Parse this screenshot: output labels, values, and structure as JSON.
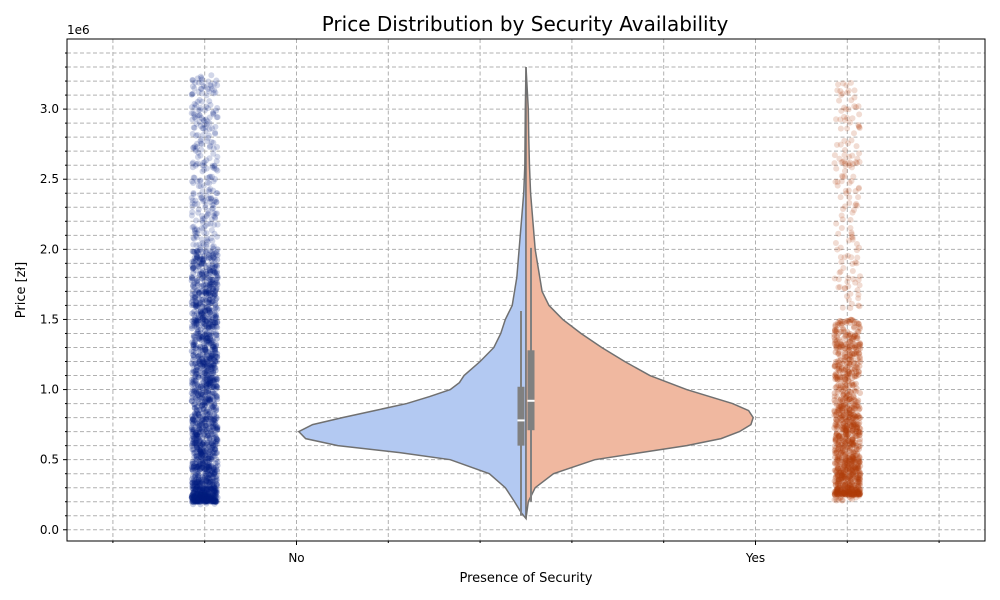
{
  "chart_data": {
    "type": "violin",
    "title": "Price Distribution by Security Availability",
    "xlabel": "Presence of Security",
    "ylabel": "Price [zł]",
    "y_offset_label": "1e6",
    "categories": [
      "No",
      "Yes"
    ],
    "ylim": [
      -0.08,
      3.5
    ],
    "y_ticks": [
      0.0,
      0.5,
      1.0,
      1.5,
      2.0,
      2.5,
      3.0
    ],
    "y_tick_labels": [
      "0.0",
      "0.5",
      "1.0",
      "1.5",
      "2.0",
      "2.5",
      "3.0"
    ],
    "y_minor_ticks": [
      0.1,
      0.2,
      0.3,
      0.4,
      0.6,
      0.7,
      0.8,
      0.9,
      1.1,
      1.2,
      1.3,
      1.4,
      1.6,
      1.7,
      1.8,
      1.9,
      2.1,
      2.2,
      2.3,
      2.4,
      2.6,
      2.7,
      2.8,
      2.9,
      3.1,
      3.2,
      3.3,
      3.4
    ],
    "x_minor_ticks": [
      -0.4,
      -0.2,
      0.2,
      0.4,
      0.6,
      0.8,
      1.2,
      1.4
    ],
    "xlim": [
      -0.5,
      1.5
    ],
    "grid": true,
    "violins": [
      {
        "category": "No",
        "side": "left",
        "color": "#b3c9f2",
        "density_max_width": 0.99,
        "density": [
          [
            0.08,
            0.0
          ],
          [
            0.12,
            0.02
          ],
          [
            0.2,
            0.05
          ],
          [
            0.3,
            0.09
          ],
          [
            0.4,
            0.16
          ],
          [
            0.5,
            0.33
          ],
          [
            0.55,
            0.55
          ],
          [
            0.6,
            0.82
          ],
          [
            0.65,
            0.96
          ],
          [
            0.7,
            0.99
          ],
          [
            0.75,
            0.93
          ],
          [
            0.8,
            0.8
          ],
          [
            0.85,
            0.66
          ],
          [
            0.9,
            0.52
          ],
          [
            0.95,
            0.42
          ],
          [
            1.0,
            0.33
          ],
          [
            1.05,
            0.29
          ],
          [
            1.1,
            0.27
          ],
          [
            1.2,
            0.2
          ],
          [
            1.3,
            0.14
          ],
          [
            1.4,
            0.11
          ],
          [
            1.5,
            0.09
          ],
          [
            1.6,
            0.06
          ],
          [
            1.7,
            0.05
          ],
          [
            1.8,
            0.04
          ],
          [
            1.9,
            0.035
          ],
          [
            2.0,
            0.03
          ],
          [
            2.2,
            0.02
          ],
          [
            2.4,
            0.01
          ],
          [
            2.6,
            0.005
          ],
          [
            2.8,
            0.004
          ],
          [
            3.0,
            0.003
          ],
          [
            3.3,
            0.0
          ]
        ],
        "box": {
          "q1": 0.6,
          "median": 0.78,
          "q3": 1.02,
          "whisker_low": 0.1,
          "whisker_high": 1.56
        },
        "strip": {
          "color": "#001c7f",
          "min": 0.18,
          "max": 3.25,
          "dense_max": 2.0
        }
      },
      {
        "category": "Yes",
        "side": "right",
        "color": "#f0b8a0",
        "density_max_width": 0.99,
        "density": [
          [
            0.08,
            0.0
          ],
          [
            0.2,
            0.01
          ],
          [
            0.3,
            0.04
          ],
          [
            0.4,
            0.12
          ],
          [
            0.5,
            0.3
          ],
          [
            0.55,
            0.5
          ],
          [
            0.6,
            0.7
          ],
          [
            0.65,
            0.85
          ],
          [
            0.7,
            0.93
          ],
          [
            0.75,
            0.98
          ],
          [
            0.8,
            0.99
          ],
          [
            0.85,
            0.97
          ],
          [
            0.9,
            0.9
          ],
          [
            0.95,
            0.8
          ],
          [
            1.0,
            0.7
          ],
          [
            1.05,
            0.62
          ],
          [
            1.1,
            0.54
          ],
          [
            1.2,
            0.43
          ],
          [
            1.3,
            0.33
          ],
          [
            1.4,
            0.24
          ],
          [
            1.5,
            0.16
          ],
          [
            1.6,
            0.1
          ],
          [
            1.7,
            0.07
          ],
          [
            1.8,
            0.06
          ],
          [
            1.9,
            0.05
          ],
          [
            2.0,
            0.04
          ],
          [
            2.2,
            0.03
          ],
          [
            2.4,
            0.02
          ],
          [
            2.6,
            0.015
          ],
          [
            2.8,
            0.012
          ],
          [
            3.0,
            0.01
          ],
          [
            3.3,
            0.0
          ]
        ],
        "box": {
          "q1": 0.71,
          "median": 0.92,
          "q3": 1.28,
          "whisker_low": 0.2,
          "whisker_high": 2.01
        },
        "strip": {
          "color": "#b13d09",
          "min": 0.2,
          "max": 3.2,
          "dense_max": 1.5
        }
      }
    ],
    "colors": {
      "no_violin": "#b3c9f2",
      "yes_violin": "#f0b8a0",
      "no_points": "#001c7f",
      "yes_points": "#b13d09",
      "box": "#808080",
      "outline": "#707070"
    }
  }
}
